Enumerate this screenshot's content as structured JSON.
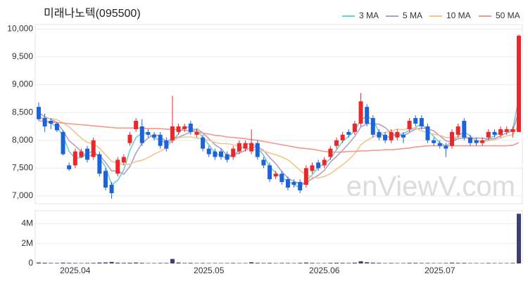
{
  "chart_data": {
    "type": "candlestick",
    "title": "미래나노텍(095500)",
    "watermark": "enViewV.com",
    "categories": [
      null,
      null,
      null,
      null,
      null,
      null,
      "2025.04",
      null,
      null,
      null,
      null,
      null,
      null,
      null,
      null,
      null,
      null,
      null,
      null,
      null,
      null,
      null,
      null,
      null,
      null,
      null,
      null,
      null,
      "2025.05",
      null,
      null,
      null,
      null,
      null,
      null,
      null,
      null,
      null,
      null,
      null,
      null,
      null,
      null,
      null,
      null,
      null,
      null,
      "2025.06",
      null,
      null,
      null,
      null,
      null,
      null,
      null,
      null,
      null,
      null,
      null,
      null,
      null,
      null,
      null,
      null,
      null,
      null,
      "2025.07",
      null,
      null,
      null,
      null,
      null,
      null,
      null,
      null,
      null,
      null,
      null,
      null,
      null
    ],
    "open": [
      8600,
      8400,
      8350,
      8300,
      8150,
      7550,
      7550,
      7700,
      7850,
      7700,
      7750,
      7450,
      7200,
      7400,
      7600,
      7950,
      8200,
      8250,
      8150,
      8100,
      8100,
      8000,
      8000,
      8150,
      8200,
      8300,
      8100,
      8050,
      7850,
      7800,
      7800,
      7750,
      7700,
      7800,
      7850,
      7800,
      7950,
      7650,
      7550,
      7350,
      7400,
      7300,
      7250,
      7250,
      7200,
      7450,
      7600,
      7550,
      7700,
      7900,
      8000,
      8150,
      8150,
      8300,
      8600,
      8400,
      8150,
      8100,
      8000,
      8050,
      8100,
      8200,
      8400,
      8400,
      8250,
      8000,
      7950,
      7900,
      7900,
      8100,
      8350,
      8050,
      8000,
      7950,
      8050,
      8150,
      8100,
      8150,
      8150,
      8150
    ],
    "high": [
      8680,
      8480,
      8400,
      8330,
      8180,
      7600,
      7850,
      7850,
      7900,
      8050,
      7800,
      7500,
      7250,
      7700,
      7750,
      8150,
      8400,
      8380,
      8200,
      8150,
      8150,
      8050,
      8800,
      8300,
      8300,
      8350,
      8200,
      8100,
      7900,
      7850,
      7850,
      7800,
      7900,
      8000,
      8000,
      8200,
      8000,
      7700,
      7600,
      7450,
      7450,
      7350,
      7300,
      7300,
      7550,
      7600,
      7650,
      7700,
      7900,
      8050,
      8150,
      8200,
      8350,
      8850,
      8650,
      8450,
      8200,
      8150,
      8200,
      8200,
      8150,
      8400,
      8450,
      8450,
      8300,
      8050,
      8000,
      7950,
      8200,
      8300,
      8400,
      8100,
      8050,
      8050,
      8200,
      8200,
      8250,
      8250,
      8250,
      9900
    ],
    "low": [
      8350,
      8150,
      8200,
      8150,
      7730,
      7450,
      7500,
      7680,
      7600,
      7650,
      7350,
      7100,
      6950,
      7350,
      7550,
      7900,
      8150,
      7900,
      8050,
      8000,
      7850,
      7800,
      7950,
      8100,
      8150,
      8100,
      8050,
      7800,
      7700,
      7650,
      7650,
      7600,
      7650,
      7750,
      7800,
      7750,
      7650,
      7500,
      7250,
      7300,
      7200,
      7100,
      7150,
      7050,
      7150,
      7400,
      7450,
      7500,
      7650,
      7850,
      7950,
      8050,
      8100,
      8250,
      8250,
      8050,
      8000,
      7950,
      7950,
      8000,
      7950,
      8150,
      8250,
      8200,
      7950,
      7900,
      7850,
      7700,
      7850,
      8050,
      8000,
      7900,
      7900,
      7900,
      8000,
      8050,
      8050,
      8100,
      8050,
      8150
    ],
    "close": [
      8380,
      8250,
      8300,
      8180,
      7750,
      7480,
      7800,
      7800,
      7650,
      8000,
      7400,
      7150,
      7050,
      7650,
      7700,
      8100,
      8350,
      7950,
      8100,
      8050,
      7900,
      7850,
      8250,
      8250,
      8250,
      8150,
      8150,
      7850,
      7750,
      7700,
      7700,
      7650,
      7850,
      7950,
      7950,
      7950,
      7700,
      7550,
      7300,
      7400,
      7250,
      7150,
      7200,
      7100,
      7500,
      7550,
      7500,
      7650,
      7850,
      8000,
      8100,
      8100,
      8300,
      8700,
      8300,
      8100,
      8050,
      8000,
      8150,
      8150,
      8050,
      8350,
      8300,
      8250,
      8000,
      7950,
      7900,
      7850,
      8150,
      8250,
      8050,
      7950,
      7950,
      8000,
      8150,
      8100,
      8200,
      8200,
      8200,
      9880
    ],
    "up_color": "#e8282b",
    "down_color": "#1c62d8",
    "ylim": [
      6860,
      10080
    ],
    "yticks": [
      {
        "value": 7000,
        "label": "7,000"
      },
      {
        "value": 7500,
        "label": "7,500"
      },
      {
        "value": 8000,
        "label": "8,000"
      },
      {
        "value": 8500,
        "label": "8,500"
      },
      {
        "value": 9000,
        "label": "9,000"
      },
      {
        "value": 9500,
        "label": "9,500"
      },
      {
        "value": 10000,
        "label": "10,000"
      }
    ],
    "grid": true,
    "legend_position": "top-right",
    "series": [
      {
        "name": "3 MA",
        "color": "#6fcfcf",
        "values": [
          8450,
          8350,
          8310,
          8240,
          8080,
          7800,
          7680,
          7690,
          7750,
          7820,
          7680,
          7520,
          7200,
          7280,
          7470,
          7820,
          8050,
          8130,
          8130,
          8030,
          8020,
          7930,
          8000,
          8120,
          8250,
          8220,
          8180,
          8050,
          7920,
          7770,
          7720,
          7680,
          7730,
          7820,
          7920,
          7950,
          7870,
          7730,
          7520,
          7420,
          7320,
          7270,
          7200,
          7150,
          7270,
          7380,
          7520,
          7570,
          7670,
          7830,
          7980,
          8070,
          8170,
          8370,
          8430,
          8370,
          8150,
          8050,
          8070,
          8100,
          8120,
          8180,
          8230,
          8300,
          8180,
          8070,
          7950,
          7900,
          7970,
          8080,
          8150,
          8080,
          7980,
          7970,
          8030,
          8080,
          8150,
          8170,
          8200,
          8760
        ]
      },
      {
        "name": "5 MA",
        "color": "#b39dc8",
        "values": [
          8500,
          8420,
          8380,
          8320,
          8170,
          7990,
          7900,
          7800,
          7700,
          7750,
          7730,
          7600,
          7450,
          7450,
          7390,
          7530,
          7770,
          7950,
          8040,
          8110,
          8070,
          7970,
          8030,
          8060,
          8100,
          8150,
          8210,
          8130,
          8030,
          7920,
          7850,
          7730,
          7730,
          7770,
          7820,
          7870,
          7880,
          7820,
          7690,
          7580,
          7440,
          7320,
          7260,
          7220,
          7240,
          7310,
          7370,
          7460,
          7610,
          7710,
          7820,
          7940,
          8070,
          8240,
          8300,
          8300,
          8290,
          8230,
          8120,
          8090,
          8080,
          8140,
          8200,
          8220,
          8210,
          8170,
          8080,
          7990,
          7970,
          8030,
          8040,
          8040,
          8040,
          8040,
          8020,
          8030,
          8080,
          8130,
          8170,
          8520
        ]
      },
      {
        "name": "10 MA",
        "color": "#f5c48a",
        "values": [
          8400,
          8400,
          8390,
          8370,
          8310,
          8240,
          8140,
          8040,
          7960,
          7940,
          7860,
          7740,
          7620,
          7590,
          7560,
          7570,
          7620,
          7640,
          7690,
          7750,
          7800,
          7870,
          7990,
          8050,
          8060,
          8060,
          8040,
          8030,
          8000,
          7960,
          7940,
          7940,
          7920,
          7890,
          7860,
          7840,
          7820,
          7810,
          7770,
          7740,
          7700,
          7650,
          7560,
          7460,
          7380,
          7340,
          7320,
          7350,
          7400,
          7480,
          7560,
          7650,
          7760,
          7920,
          8000,
          8060,
          8110,
          8140,
          8170,
          8200,
          8190,
          8220,
          8220,
          8170,
          8140,
          8110,
          8090,
          8050,
          8050,
          8060,
          8080,
          8040,
          8000,
          7980,
          7990,
          8010,
          8040,
          8080,
          8100,
          8290
        ]
      },
      {
        "name": "50 MA",
        "color": "#f2998a",
        "values": [
          8350,
          8340,
          8330,
          8320,
          8310,
          8300,
          8290,
          8280,
          8270,
          8260,
          8250,
          8240,
          8230,
          8220,
          8220,
          8220,
          8220,
          8220,
          8210,
          8210,
          8210,
          8200,
          8200,
          8190,
          8180,
          8170,
          8150,
          8130,
          8110,
          8090,
          8080,
          8060,
          8050,
          8040,
          8030,
          8010,
          8000,
          7980,
          7960,
          7940,
          7920,
          7900,
          7880,
          7860,
          7850,
          7840,
          7820,
          7800,
          7790,
          7790,
          7790,
          7800,
          7800,
          7810,
          7810,
          7820,
          7820,
          7830,
          7830,
          7840,
          7850,
          7860,
          7880,
          7890,
          7900,
          7900,
          7900,
          7900,
          7900,
          7900,
          7900,
          7900,
          7900,
          7900,
          7900,
          7900,
          7900,
          7900,
          7910,
          7960
        ]
      }
    ],
    "volume": {
      "color": "#3d3f6e",
      "ylim": [
        0,
        5300000
      ],
      "yticks": [
        0,
        {
          "value": 2000000,
          "label": "2M"
        },
        {
          "value": 4000000,
          "label": "4M"
        }
      ],
      "values": [
        90000,
        70000,
        50000,
        50000,
        80000,
        60000,
        50000,
        40000,
        50000,
        60000,
        90000,
        100000,
        150000,
        80000,
        60000,
        70000,
        90000,
        60000,
        40000,
        40000,
        50000,
        50000,
        450000,
        90000,
        50000,
        60000,
        40000,
        50000,
        40000,
        40000,
        40000,
        40000,
        50000,
        40000,
        40000,
        120000,
        60000,
        50000,
        60000,
        40000,
        50000,
        50000,
        40000,
        60000,
        90000,
        60000,
        40000,
        40000,
        60000,
        70000,
        60000,
        50000,
        80000,
        220000,
        120000,
        80000,
        60000,
        40000,
        50000,
        40000,
        40000,
        60000,
        60000,
        50000,
        50000,
        40000,
        40000,
        50000,
        80000,
        60000,
        60000,
        40000,
        40000,
        30000,
        50000,
        40000,
        40000,
        40000,
        50000,
        5000000
      ]
    }
  }
}
